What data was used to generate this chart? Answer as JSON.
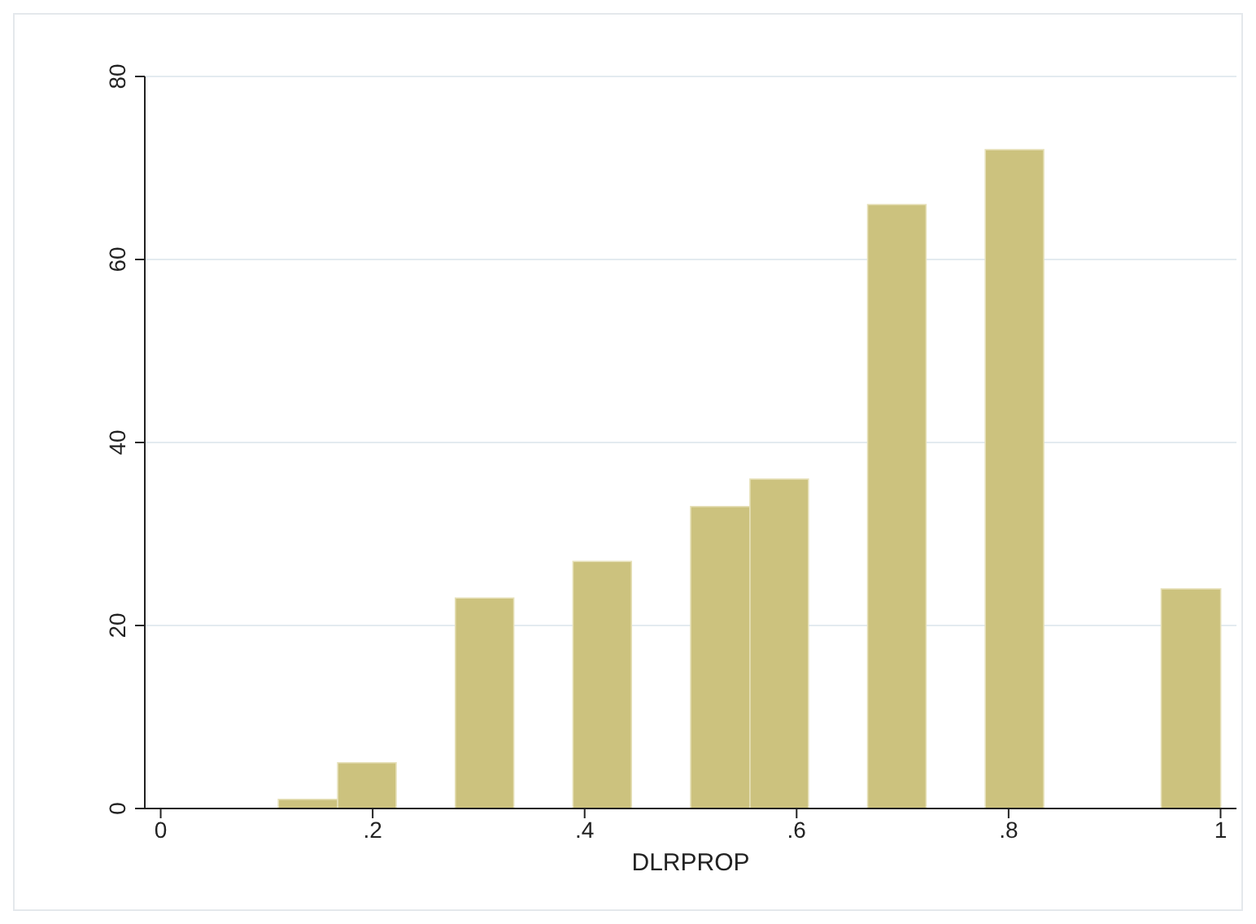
{
  "chart_data": {
    "type": "histogram",
    "xlabel": "DLRPROP",
    "color": "#ccc27e",
    "bins": [
      0.111,
      0.167,
      0.222,
      0.278,
      0.333,
      0.389,
      0.444,
      0.5,
      0.556,
      0.611,
      0.667,
      0.722,
      0.778,
      0.833,
      0.944,
      1
    ],
    "values": [
      1,
      5,
      0,
      23,
      0,
      27,
      0,
      33,
      36,
      0,
      66,
      0,
      72,
      0,
      24
    ],
    "xlim": [
      -0.015,
      1.015
    ],
    "xticks": [
      0,
      {
        "value": 0.2,
        "label": ".2"
      },
      {
        "value": 0.4,
        "label": ".4"
      },
      {
        "value": 0.6,
        "label": ".6"
      },
      {
        "value": 0.8,
        "label": ".8"
      },
      1
    ],
    "ylim": [
      0,
      80
    ],
    "yticks": [
      0,
      20,
      40,
      60,
      80
    ],
    "grid": "y"
  }
}
